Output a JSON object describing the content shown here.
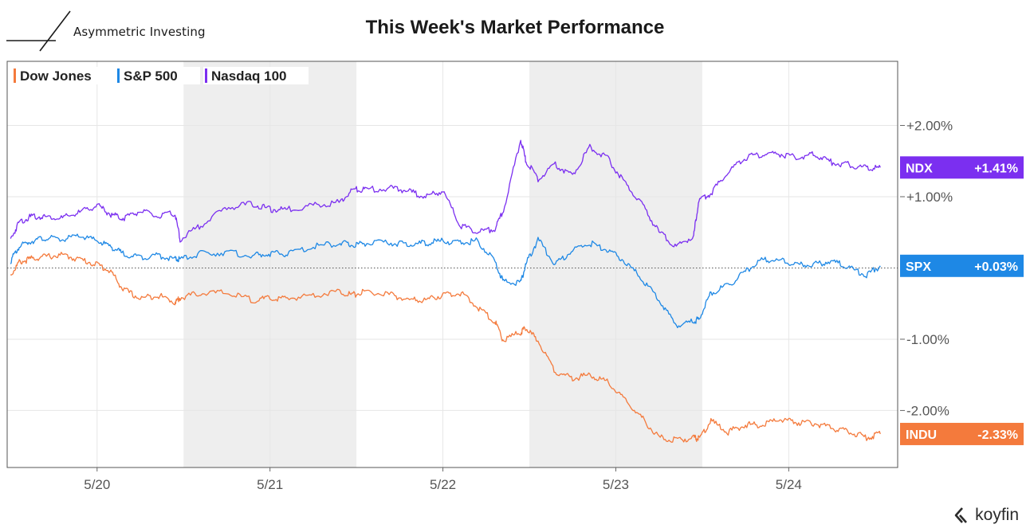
{
  "header": {
    "brand": "Asymmetric Investing",
    "title": "This Week's Market Performance"
  },
  "footer": {
    "logo_text": "koyfin"
  },
  "chart_data": {
    "type": "line",
    "title": "This Week's Market Performance",
    "xlabel": "",
    "ylabel": "",
    "x_ticks": [
      "5/20",
      "5/21",
      "5/22",
      "5/23",
      "5/24"
    ],
    "y_ticks": [
      "+2.00%",
      "+1.00%",
      "-1.00%",
      "-2.00%"
    ],
    "y_tick_values": [
      2.0,
      1.0,
      -1.0,
      -2.0
    ],
    "ylim": [
      -2.8,
      2.9
    ],
    "xlim": [
      -0.52,
      4.63
    ],
    "grid": true,
    "legend_position": "top-left",
    "shaded_days": [
      "5/21",
      "5/23"
    ],
    "reference_line": 0,
    "colors": {
      "Dow Jones": "#f47a3c",
      "S&P 500": "#1e88e5",
      "Nasdaq 100": "#7b2ff0"
    },
    "series": [
      {
        "name": "Dow Jones",
        "ticker": "INDU",
        "end_label": "-2.33%",
        "color": "#f47a3c",
        "x": [
          -0.5,
          -0.45,
          -0.38,
          -0.3,
          -0.2,
          -0.1,
          0,
          0.08,
          0.15,
          0.25,
          0.35,
          0.45,
          0.48,
          0.6,
          0.75,
          0.9,
          1.0,
          1.1,
          1.25,
          1.4,
          1.48,
          1.55,
          1.7,
          1.8,
          1.9,
          2.0,
          2.1,
          2.2,
          2.3,
          2.35,
          2.45,
          2.48,
          2.55,
          2.65,
          2.75,
          2.85,
          2.95,
          3.05,
          3.15,
          3.25,
          3.35,
          3.45,
          3.48,
          3.55,
          3.65,
          3.75,
          3.85,
          3.95,
          4.05,
          4.15,
          4.25,
          4.35,
          4.45,
          4.53
        ],
        "y": [
          -0.1,
          0.08,
          0.13,
          0.16,
          0.18,
          0.12,
          0.05,
          -0.05,
          -0.3,
          -0.43,
          -0.38,
          -0.48,
          -0.42,
          -0.35,
          -0.35,
          -0.45,
          -0.43,
          -0.43,
          -0.38,
          -0.33,
          -0.38,
          -0.33,
          -0.38,
          -0.45,
          -0.45,
          -0.38,
          -0.35,
          -0.55,
          -0.75,
          -1.02,
          -0.9,
          -0.85,
          -1.02,
          -1.45,
          -1.55,
          -1.5,
          -1.6,
          -1.85,
          -2.1,
          -2.38,
          -2.42,
          -2.38,
          -2.4,
          -2.15,
          -2.3,
          -2.2,
          -2.2,
          -2.12,
          -2.17,
          -2.18,
          -2.25,
          -2.3,
          -2.38,
          -2.33
        ]
      },
      {
        "name": "S&P 500",
        "ticker": "SPX",
        "end_label": "+0.03%",
        "color": "#1e88e5",
        "x": [
          -0.5,
          -0.45,
          -0.38,
          -0.3,
          -0.2,
          -0.1,
          0,
          0.08,
          0.15,
          0.25,
          0.35,
          0.45,
          0.48,
          0.6,
          0.75,
          0.9,
          1.0,
          1.1,
          1.25,
          1.4,
          1.48,
          1.55,
          1.7,
          1.8,
          1.9,
          2.0,
          2.1,
          2.2,
          2.3,
          2.35,
          2.45,
          2.48,
          2.55,
          2.65,
          2.75,
          2.85,
          2.95,
          3.05,
          3.15,
          3.25,
          3.35,
          3.45,
          3.48,
          3.55,
          3.65,
          3.75,
          3.85,
          3.95,
          4.05,
          4.15,
          4.25,
          4.35,
          4.45,
          4.53
        ],
        "y": [
          0.1,
          0.3,
          0.38,
          0.42,
          0.4,
          0.45,
          0.38,
          0.3,
          0.2,
          0.15,
          0.18,
          0.12,
          0.12,
          0.2,
          0.22,
          0.17,
          0.2,
          0.2,
          0.3,
          0.35,
          0.32,
          0.35,
          0.35,
          0.33,
          0.35,
          0.38,
          0.35,
          0.38,
          0.1,
          -0.2,
          -0.2,
          0.05,
          0.4,
          0.05,
          0.25,
          0.35,
          0.25,
          0.1,
          -0.15,
          -0.45,
          -0.8,
          -0.75,
          -0.72,
          -0.35,
          -0.25,
          -0.05,
          0.12,
          0.1,
          0.05,
          0.05,
          0.1,
          0.0,
          -0.1,
          0.03
        ]
      },
      {
        "name": "Nasdaq 100",
        "ticker": "NDX",
        "end_label": "+1.41%",
        "color": "#7b2ff0",
        "x": [
          -0.5,
          -0.45,
          -0.38,
          -0.3,
          -0.2,
          -0.1,
          0,
          0.08,
          0.15,
          0.25,
          0.35,
          0.45,
          0.48,
          0.6,
          0.75,
          0.9,
          1.0,
          1.1,
          1.25,
          1.4,
          1.48,
          1.55,
          1.7,
          1.8,
          1.9,
          2.0,
          2.1,
          2.2,
          2.3,
          2.35,
          2.45,
          2.48,
          2.55,
          2.65,
          2.75,
          2.85,
          2.95,
          3.05,
          3.15,
          3.25,
          3.35,
          3.45,
          3.48,
          3.55,
          3.65,
          3.75,
          3.85,
          3.95,
          4.05,
          4.15,
          4.25,
          4.35,
          4.45,
          4.53
        ],
        "y": [
          0.4,
          0.65,
          0.72,
          0.72,
          0.7,
          0.78,
          0.88,
          0.75,
          0.7,
          0.8,
          0.72,
          0.77,
          0.4,
          0.6,
          0.85,
          0.9,
          0.82,
          0.82,
          0.88,
          0.92,
          1.1,
          1.1,
          1.12,
          1.08,
          1.0,
          1.08,
          0.6,
          0.5,
          0.55,
          0.8,
          1.8,
          1.5,
          1.25,
          1.45,
          1.3,
          1.7,
          1.55,
          1.2,
          0.9,
          0.5,
          0.3,
          0.45,
          0.95,
          1.05,
          1.35,
          1.55,
          1.6,
          1.6,
          1.55,
          1.6,
          1.48,
          1.45,
          1.4,
          1.41
        ]
      }
    ]
  }
}
